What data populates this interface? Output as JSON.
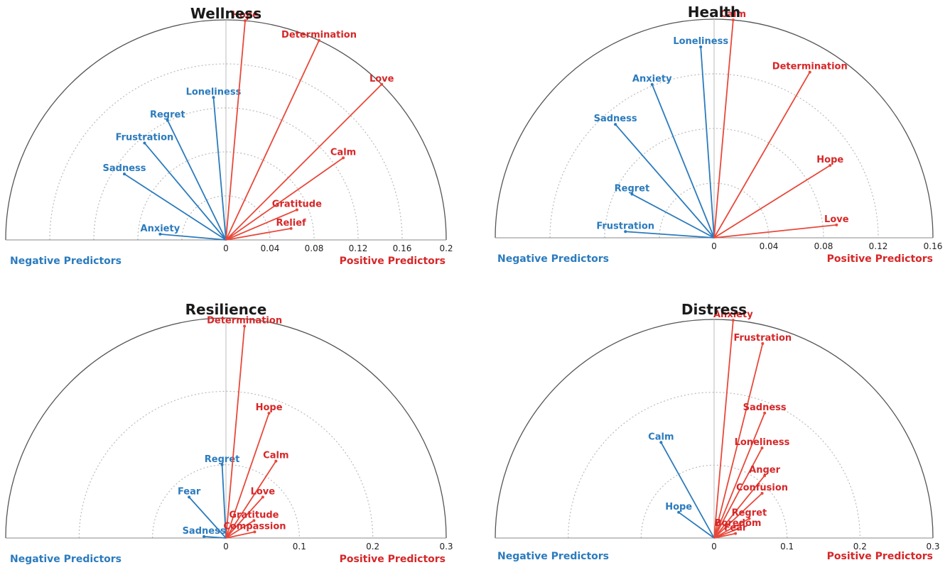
{
  "colors": {
    "negative": "#2b7bbd",
    "positive": "#e8483a",
    "positive_text": "#d62728",
    "grid": "#bbbbbb",
    "frame": "#555555"
  },
  "footer": {
    "negative": "Negative Predictors",
    "positive": "Positive Predictors"
  },
  "chart_data": [
    {
      "type": "polar-lollipop",
      "title": "Wellness",
      "rmax": 0.2,
      "ticks": [
        "0",
        "0.04",
        "0.08",
        "0.12",
        "0.16",
        "0.2"
      ],
      "tick_values": [
        0,
        0.04,
        0.08,
        0.12,
        0.16,
        0.2
      ],
      "negative": [
        {
          "label": "Anxiety",
          "value": 0.06,
          "angle_deg": 175
        },
        {
          "label": "Sadness",
          "value": 0.11,
          "angle_deg": 147
        },
        {
          "label": "Frustration",
          "value": 0.115,
          "angle_deg": 130
        },
        {
          "label": "Regret",
          "value": 0.121,
          "angle_deg": 116
        },
        {
          "label": "Loneliness",
          "value": 0.13,
          "angle_deg": 95
        }
      ],
      "positive": [
        {
          "label": "Hope",
          "value": 0.2,
          "angle_deg": 85
        },
        {
          "label": "Determination",
          "value": 0.2,
          "angle_deg": 65
        },
        {
          "label": "Love",
          "value": 0.2,
          "angle_deg": 45
        },
        {
          "label": "Calm",
          "value": 0.13,
          "angle_deg": 35
        },
        {
          "label": "Gratitude",
          "value": 0.07,
          "angle_deg": 23
        },
        {
          "label": "Relief",
          "value": 0.06,
          "angle_deg": 10
        }
      ]
    },
    {
      "type": "polar-lollipop",
      "title": "Health",
      "rmax": 0.16,
      "ticks": [
        "0",
        "0.04",
        "0.08",
        "0.12",
        "0.16"
      ],
      "tick_values": [
        0,
        0.04,
        0.08,
        0.12,
        0.16
      ],
      "negative": [
        {
          "label": "Frustration",
          "value": 0.065,
          "angle_deg": 176
        },
        {
          "label": "Regret",
          "value": 0.068,
          "angle_deg": 152
        },
        {
          "label": "Sadness",
          "value": 0.11,
          "angle_deg": 131
        },
        {
          "label": "Anxiety",
          "value": 0.121,
          "angle_deg": 112
        },
        {
          "label": "Loneliness",
          "value": 0.14,
          "angle_deg": 94
        }
      ],
      "positive": [
        {
          "label": "Calm",
          "value": 0.16,
          "angle_deg": 85
        },
        {
          "label": "Determination",
          "value": 0.14,
          "angle_deg": 60
        },
        {
          "label": "Hope",
          "value": 0.1,
          "angle_deg": 32
        },
        {
          "label": "Love",
          "value": 0.09,
          "angle_deg": 6
        }
      ]
    },
    {
      "type": "polar-lollipop",
      "title": "Resilience",
      "rmax": 0.3,
      "ticks": [
        "0",
        "0.1",
        "0.2",
        "0.3"
      ],
      "tick_values": [
        0,
        0.1,
        0.2,
        0.3
      ],
      "negative": [
        {
          "label": "Sadness",
          "value": 0.03,
          "angle_deg": 176
        },
        {
          "label": "Fear",
          "value": 0.075,
          "angle_deg": 132
        },
        {
          "label": "Regret",
          "value": 0.1,
          "angle_deg": 93
        }
      ],
      "positive": [
        {
          "label": "Determination",
          "value": 0.29,
          "angle_deg": 85
        },
        {
          "label": "Hope",
          "value": 0.18,
          "angle_deg": 71
        },
        {
          "label": "Calm",
          "value": 0.125,
          "angle_deg": 57
        },
        {
          "label": "Love",
          "value": 0.075,
          "angle_deg": 48
        },
        {
          "label": "Gratitude",
          "value": 0.045,
          "angle_deg": 32
        },
        {
          "label": "Compassion",
          "value": 0.04,
          "angle_deg": 12
        }
      ]
    },
    {
      "type": "polar-lollipop",
      "title": "Distress",
      "rmax": 0.3,
      "ticks": [
        "0",
        "0.1",
        "0.2",
        "0.3"
      ],
      "tick_values": [
        0,
        0.1,
        0.2,
        0.3
      ],
      "negative": [
        {
          "label": "Hope",
          "value": 0.06,
          "angle_deg": 144
        },
        {
          "label": "Calm",
          "value": 0.15,
          "angle_deg": 119
        }
      ],
      "positive": [
        {
          "label": "Anxiety",
          "value": 0.3,
          "angle_deg": 85
        },
        {
          "label": "Frustration",
          "value": 0.275,
          "angle_deg": 76
        },
        {
          "label": "Sadness",
          "value": 0.185,
          "angle_deg": 68
        },
        {
          "label": "Loneliness",
          "value": 0.14,
          "angle_deg": 62
        },
        {
          "label": "Anger",
          "value": 0.11,
          "angle_deg": 51
        },
        {
          "label": "Confusion",
          "value": 0.09,
          "angle_deg": 43
        },
        {
          "label": "Regret",
          "value": 0.055,
          "angle_deg": 29
        },
        {
          "label": "Boredom",
          "value": 0.035,
          "angle_deg": 21
        },
        {
          "label": "Fear",
          "value": 0.03,
          "angle_deg": 12
        }
      ]
    }
  ]
}
